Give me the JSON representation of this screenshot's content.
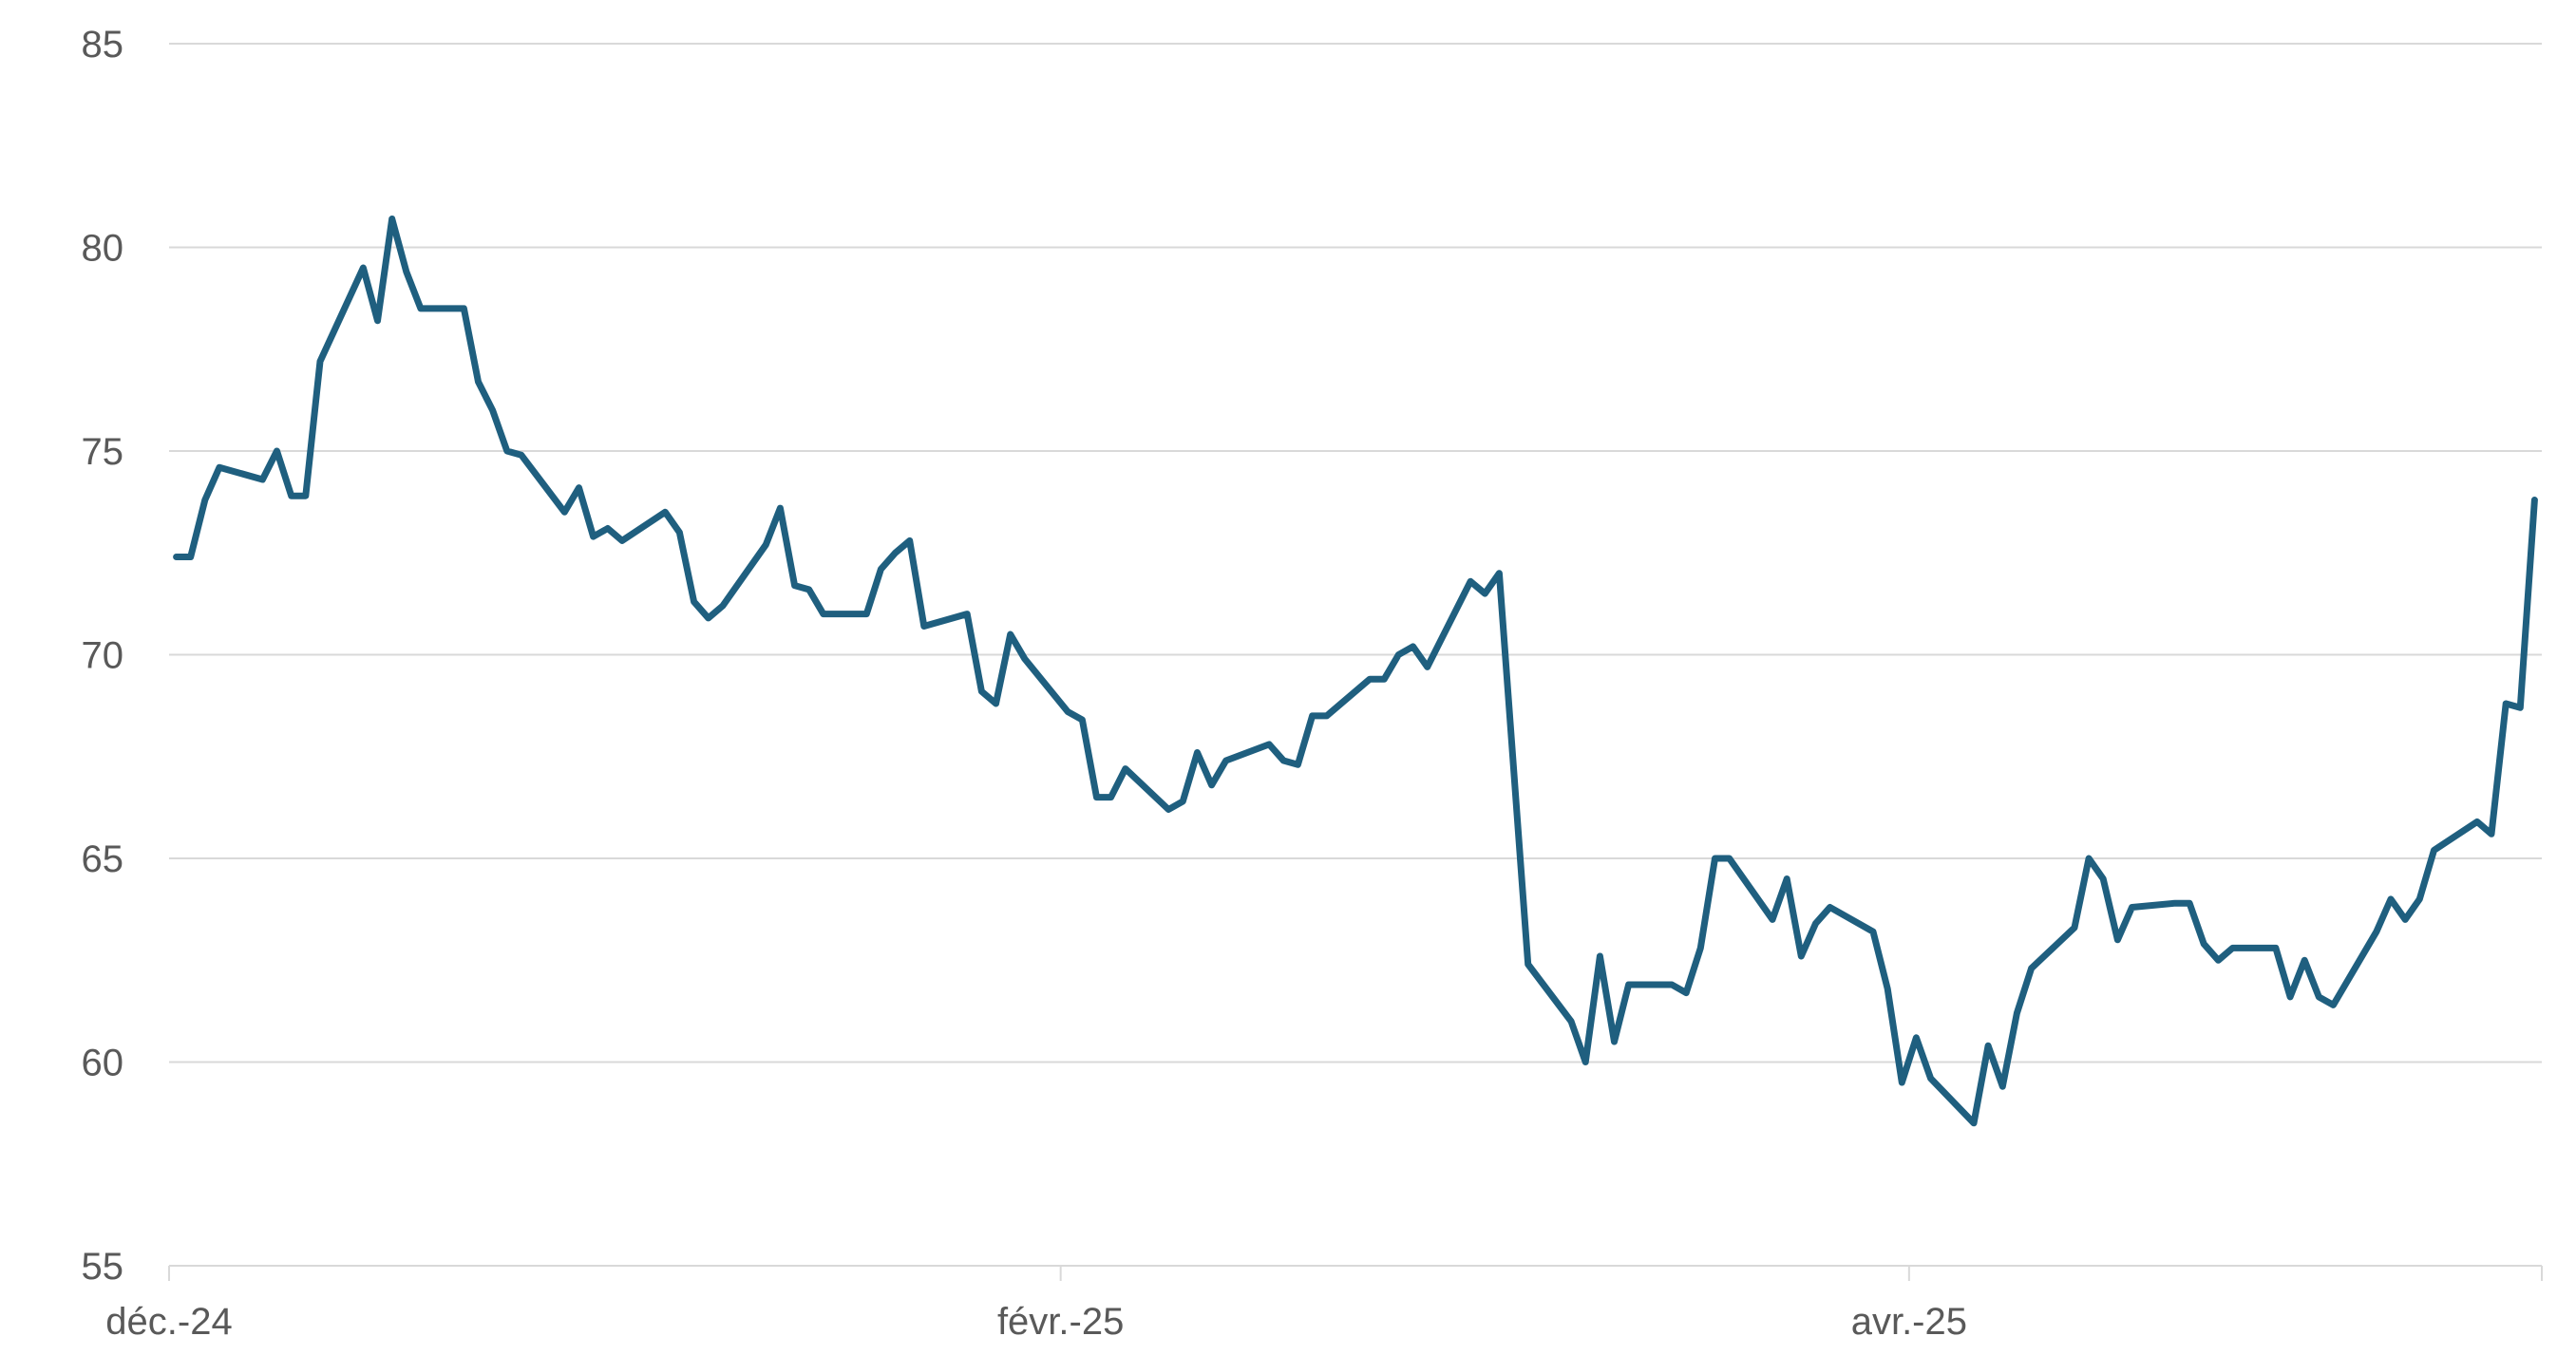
{
  "chart_data": {
    "type": "line",
    "title": "",
    "xlabel": "",
    "ylabel": "",
    "ylim": [
      55,
      85
    ],
    "y_ticks": [
      55,
      60,
      65,
      70,
      75,
      80,
      85
    ],
    "x_ticks": [
      {
        "x": 0,
        "label": "déc.-24"
      },
      {
        "x": 62,
        "label": "févr.-25"
      },
      {
        "x": 121,
        "label": "avr.-25"
      }
    ],
    "grid": true,
    "legend": "none",
    "colors": {
      "series": "#1f5f7f",
      "grid": "#d9d9d9",
      "text": "#595959"
    },
    "series": [
      {
        "values": [
          [
            0.5,
            72.4
          ],
          [
            1.5,
            72.4
          ],
          [
            2.5,
            73.8
          ],
          [
            3.5,
            74.6
          ],
          [
            6.5,
            74.3
          ],
          [
            7.5,
            75.0
          ],
          [
            8.5,
            73.9
          ],
          [
            9.5,
            73.9
          ],
          [
            10.5,
            77.2
          ],
          [
            13.5,
            79.5
          ],
          [
            14.5,
            78.2
          ],
          [
            15.5,
            80.7
          ],
          [
            16.5,
            79.4
          ],
          [
            17.5,
            78.5
          ],
          [
            20.5,
            78.5
          ],
          [
            21.5,
            76.7
          ],
          [
            22.5,
            76.0
          ],
          [
            23.5,
            75.0
          ],
          [
            24.5,
            74.9
          ],
          [
            27.5,
            73.5
          ],
          [
            28.5,
            74.1
          ],
          [
            29.5,
            72.9
          ],
          [
            30.5,
            73.1
          ],
          [
            31.5,
            72.8
          ],
          [
            34.5,
            73.5
          ],
          [
            35.5,
            73.0
          ],
          [
            36.5,
            71.3
          ],
          [
            37.5,
            70.9
          ],
          [
            38.5,
            71.2
          ],
          [
            41.5,
            72.7
          ],
          [
            42.5,
            73.6
          ],
          [
            43.5,
            71.7
          ],
          [
            44.5,
            71.6
          ],
          [
            45.5,
            71.0
          ],
          [
            48.5,
            71.0
          ],
          [
            49.5,
            72.1
          ],
          [
            50.5,
            72.5
          ],
          [
            51.5,
            72.8
          ],
          [
            52.5,
            70.7
          ],
          [
            55.5,
            71.0
          ],
          [
            56.5,
            69.1
          ],
          [
            57.5,
            68.8
          ],
          [
            58.5,
            70.5
          ],
          [
            59.5,
            69.9
          ],
          [
            62.5,
            68.6
          ],
          [
            63.5,
            68.4
          ],
          [
            64.5,
            66.5
          ],
          [
            65.5,
            66.5
          ],
          [
            66.5,
            67.2
          ],
          [
            69.5,
            66.2
          ],
          [
            70.5,
            66.4
          ],
          [
            71.5,
            67.6
          ],
          [
            72.5,
            66.8
          ],
          [
            73.5,
            67.4
          ],
          [
            76.5,
            67.8
          ],
          [
            77.5,
            67.4
          ],
          [
            78.5,
            67.3
          ],
          [
            79.5,
            68.5
          ],
          [
            80.5,
            68.5
          ],
          [
            83.5,
            69.4
          ],
          [
            84.5,
            69.4
          ],
          [
            85.5,
            70.0
          ],
          [
            86.5,
            70.2
          ],
          [
            87.5,
            69.7
          ],
          [
            90.5,
            71.8
          ],
          [
            91.5,
            71.5
          ],
          [
            92.5,
            72.0
          ],
          [
            94.5,
            62.4
          ],
          [
            97.5,
            61.0
          ],
          [
            98.5,
            60.0
          ],
          [
            99.5,
            62.6
          ],
          [
            100.5,
            60.5
          ],
          [
            101.5,
            61.9
          ],
          [
            104.5,
            61.9
          ],
          [
            105.5,
            61.7
          ],
          [
            106.5,
            62.8
          ],
          [
            107.5,
            65.0
          ],
          [
            108.5,
            65.0
          ],
          [
            111.5,
            63.5
          ],
          [
            112.5,
            64.5
          ],
          [
            113.5,
            62.6
          ],
          [
            114.5,
            63.4
          ],
          [
            115.5,
            63.8
          ],
          [
            118.5,
            63.2
          ],
          [
            119.5,
            61.8
          ],
          [
            120.5,
            59.5
          ],
          [
            121.5,
            60.6
          ],
          [
            122.5,
            59.6
          ],
          [
            125.5,
            58.5
          ],
          [
            126.5,
            60.4
          ],
          [
            127.5,
            59.4
          ],
          [
            128.5,
            61.2
          ],
          [
            129.5,
            62.3
          ],
          [
            132.5,
            63.3
          ],
          [
            133.5,
            65.0
          ],
          [
            134.5,
            64.5
          ],
          [
            135.5,
            63.0
          ],
          [
            136.5,
            63.8
          ],
          [
            139.5,
            63.9
          ],
          [
            140.5,
            63.9
          ],
          [
            141.5,
            62.9
          ],
          [
            142.5,
            62.5
          ],
          [
            143.5,
            62.8
          ],
          [
            146.5,
            62.8
          ],
          [
            147.5,
            61.6
          ],
          [
            148.5,
            62.5
          ],
          [
            149.5,
            61.6
          ],
          [
            150.5,
            61.4
          ],
          [
            153.5,
            63.2
          ],
          [
            154.5,
            64.0
          ],
          [
            155.5,
            63.5
          ],
          [
            156.5,
            64.0
          ],
          [
            157.5,
            65.2
          ],
          [
            160.5,
            65.9
          ],
          [
            161.5,
            65.6
          ],
          [
            162.5,
            68.8
          ],
          [
            163.5,
            68.7
          ],
          [
            164.5,
            73.8
          ]
        ]
      }
    ]
  }
}
